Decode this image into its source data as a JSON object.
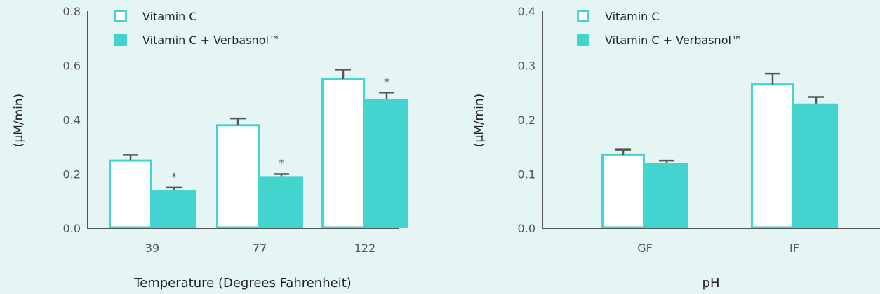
{
  "colors": {
    "background": "#e4f5f3",
    "accent": "#44d4d0",
    "axis": "#555555",
    "text": "#222222",
    "tick_text": "#555555"
  },
  "chart_data": [
    {
      "type": "bar",
      "categories": [
        "39",
        "77",
        "122"
      ],
      "series": [
        {
          "name": "Vitamin C",
          "style": "outline",
          "values": [
            0.25,
            0.38,
            0.55
          ],
          "errors": [
            0.02,
            0.025,
            0.035
          ]
        },
        {
          "name": "Vitamin C + Verbasnol™",
          "style": "filled",
          "values": [
            0.14,
            0.19,
            0.475
          ],
          "errors": [
            0.01,
            0.01,
            0.025
          ]
        }
      ],
      "significance": [
        [
          "",
          "*"
        ],
        [
          "",
          "*"
        ],
        [
          "",
          "*"
        ]
      ],
      "title": "",
      "xlabel": "Temperature (Degrees Fahrenheit)",
      "ylabel": "(µM/min)",
      "ylim": [
        0,
        0.8
      ],
      "yticks": [
        "0.0",
        "0.2",
        "0.4",
        "0.6",
        "0.8"
      ],
      "legend": "top-left",
      "grid": false
    },
    {
      "type": "bar",
      "categories": [
        "GF",
        "IF"
      ],
      "series": [
        {
          "name": "Vitamin C",
          "style": "outline",
          "values": [
            0.135,
            0.265
          ],
          "errors": [
            0.01,
            0.02
          ]
        },
        {
          "name": "Vitamin C + Verbasnol™",
          "style": "filled",
          "values": [
            0.12,
            0.23
          ],
          "errors": [
            0.005,
            0.012
          ]
        }
      ],
      "significance": [
        [
          "",
          ""
        ],
        [
          "",
          ""
        ]
      ],
      "title": "",
      "xlabel": "pH",
      "ylabel": "(µM/min)",
      "ylim": [
        0,
        0.4
      ],
      "yticks": [
        "0.0",
        "0.1",
        "0.2",
        "0.3",
        "0.4"
      ],
      "legend": "top-left",
      "grid": false
    }
  ]
}
